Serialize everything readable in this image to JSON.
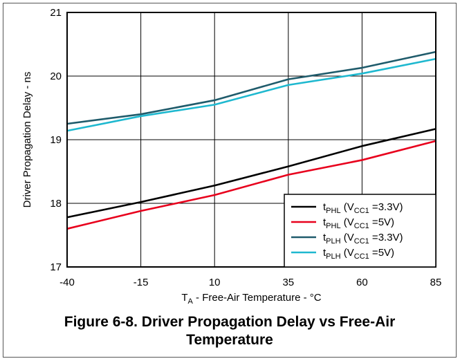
{
  "figure": {
    "caption_line1": "Figure 6-8. Driver Propagation Delay vs Free-Air",
    "caption_line2": "Temperature"
  },
  "chart_data": {
    "type": "line",
    "xlabel": {
      "main": "T",
      "sub": "A",
      "rest": " - Free-Air Temperature - °C"
    },
    "ylabel": "Driver Propagation Delay - ns",
    "x": [
      -40,
      -15,
      10,
      35,
      60,
      85
    ],
    "x_ticks": [
      "-40",
      "-15",
      "10",
      "35",
      "60",
      "85"
    ],
    "y_ticks": [
      "17",
      "18",
      "19",
      "20",
      "21"
    ],
    "xlim": [
      -40,
      85
    ],
    "ylim": [
      17,
      21
    ],
    "grid": true,
    "legend_position": "bottom-right",
    "series": [
      {
        "name": "tPHL (VCC1 =3.3V)",
        "label_main": "t",
        "label_sub": "PHL",
        "label_mid": " (V",
        "label_sub2": "CC1",
        "label_end": " =3.3V)",
        "color": "#000000",
        "values": [
          17.78,
          18.02,
          18.28,
          18.58,
          18.9,
          19.17
        ]
      },
      {
        "name": "tPHL (VCC1 =5V)",
        "label_main": "t",
        "label_sub": "PHL",
        "label_mid": " (V",
        "label_sub2": "CC1",
        "label_end": " =5V)",
        "color": "#e8001c",
        "values": [
          17.6,
          17.88,
          18.13,
          18.45,
          18.68,
          18.98
        ]
      },
      {
        "name": "tPLH (VCC1 =3.3V)",
        "label_main": "t",
        "label_sub": "PLH",
        "label_mid": " (V",
        "label_sub2": "CC1",
        "label_end": " =3.3V)",
        "color": "#1f5b6b",
        "values": [
          19.25,
          19.4,
          19.62,
          19.95,
          20.13,
          20.38
        ]
      },
      {
        "name": "tPLH (VCC1 =5V)",
        "label_main": "t",
        "label_sub": "PLH",
        "label_mid": " (V",
        "label_sub2": "CC1",
        "label_end": " =5V)",
        "color": "#1eb8cf",
        "values": [
          19.14,
          19.37,
          19.55,
          19.86,
          20.04,
          20.27
        ]
      }
    ]
  }
}
